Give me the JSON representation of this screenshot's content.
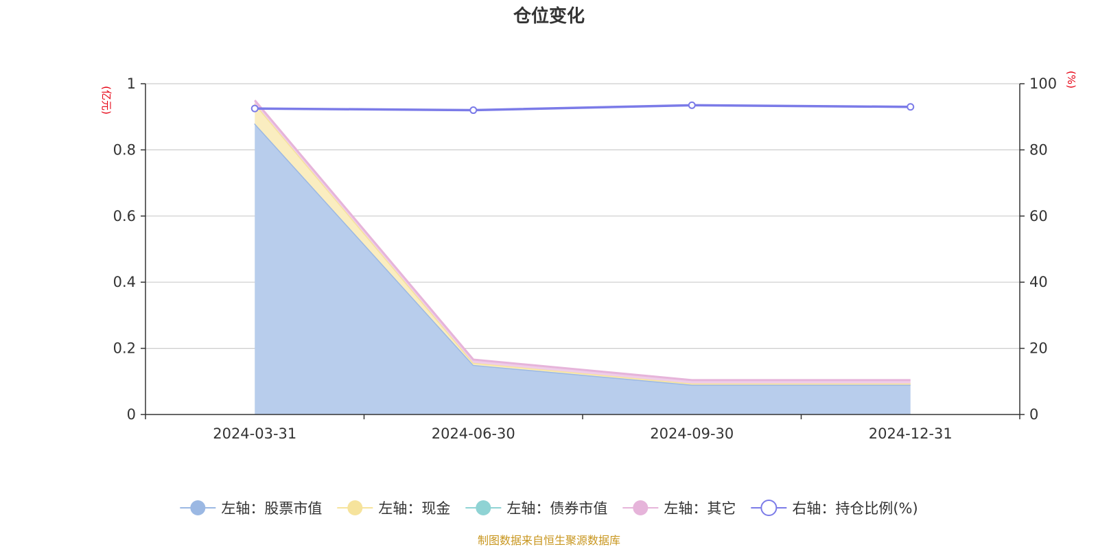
{
  "chart_data": {
    "type": "area",
    "title": "仓位变化",
    "categories": [
      "2024-03-31",
      "2024-06-30",
      "2024-09-30",
      "2024-12-31"
    ],
    "left_axis": {
      "unit": "(亿元)",
      "min": 0,
      "max": 1,
      "ticks": [
        "0",
        "0.2",
        "0.4",
        "0.6",
        "0.8",
        "1"
      ]
    },
    "right_axis": {
      "unit": "(%)",
      "min": 0,
      "max": 100,
      "ticks": [
        "0",
        "20",
        "40",
        "60",
        "80",
        "100"
      ]
    },
    "stacked_series": [
      {
        "name": "左轴：股票市值",
        "values": [
          0.88,
          0.15,
          0.09,
          0.09
        ],
        "color": "#9bb8e3",
        "fill": "#b8cdec"
      },
      {
        "name": "左轴：现金",
        "values": [
          0.06,
          0.006,
          0.004,
          0.004
        ],
        "color": "#f6e39c",
        "fill": "#faedc0"
      },
      {
        "name": "左轴：债券市值",
        "values": [
          0,
          0,
          0,
          0
        ],
        "color": "#8fd3d4",
        "fill": "#b6e2e2"
      },
      {
        "name": "左轴：其它",
        "values": [
          0.01,
          0.01,
          0.01,
          0.01
        ],
        "color": "#e6b4da",
        "fill": "#efcde8"
      }
    ],
    "line_series": {
      "name": "右轴：持仓比例(%)",
      "values": [
        92.5,
        92.0,
        93.5,
        93.0
      ],
      "color": "#7b7be8"
    },
    "grid": true,
    "legend_position": "bottom"
  },
  "source_note": "制图数据来自恒生聚源数据库"
}
